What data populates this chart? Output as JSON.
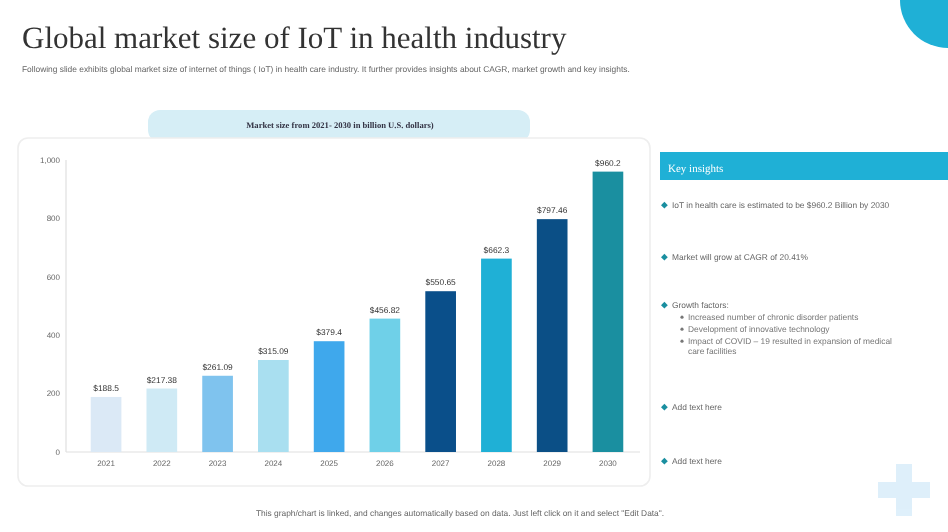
{
  "chart_data": {
    "type": "bar",
    "title": "Global market size of IoT in health industry",
    "subtitle": "Following slide exhibits global market size of internet of things ( IoT) in health care industry. It further provides insights about CAGR, market growth and key insights.",
    "categories": [
      "2021",
      "2022",
      "2023",
      "2024",
      "2025",
      "2026",
      "2027",
      "2028",
      "2029",
      "2030"
    ],
    "values": [
      188.5,
      217.38,
      261.09,
      315.09,
      379.4,
      456.82,
      550.65,
      662.3,
      797.46,
      960.2
    ],
    "value_labels": [
      "$188.5",
      "$217.38",
      "$261.09",
      "$315.09",
      "$379.4",
      "$456.82",
      "$550.65",
      "$662.3",
      "$797.46",
      "$960.2"
    ],
    "colors": [
      "#dbe9f6",
      "#cfeaf5",
      "#7fc3ee",
      "#a9dff0",
      "#3fa8ec",
      "#6fd0e8",
      "#0a4f8a",
      "#1fb0d6",
      "#0b4f86",
      "#1a8fa0"
    ],
    "ylim": [
      0,
      1000
    ],
    "yticks": [
      0,
      200,
      400,
      600,
      800,
      {
        "value": 1000,
        "label": "1,000"
      }
    ],
    "grid": false,
    "annotations": [
      "Market size from 2021- 2030 in billion U.S. dollars)",
      "Key insights",
      "IoT in health care is estimated to be $960.2 Billion by 2030",
      "Market will grow at CAGR of 20.41%",
      "Growth factors:",
      "Increased number of chronic disorder patients",
      "Development of innovative technology",
      "Impact of COVID – 19 resulted in expansion of medical care facilities",
      "Add text here",
      "Add text here",
      "This graph/chart is linked, and changes automatically based on data. Just left click on it and select \"Edit Data\"."
    ]
  }
}
